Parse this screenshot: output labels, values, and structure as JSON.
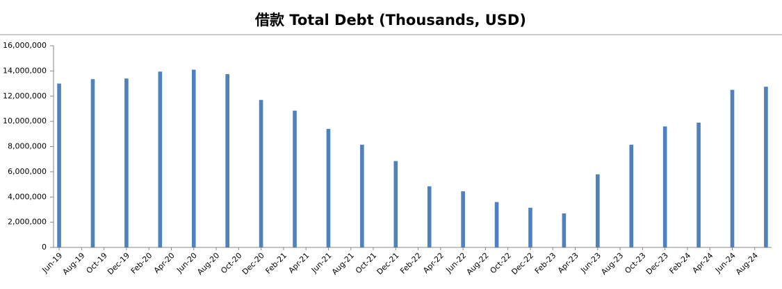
{
  "chart_data": {
    "type": "bar",
    "title": "借款 Total Debt (Thousands, USD)",
    "categories": [
      "Jun-19",
      null,
      "Aug-19",
      null,
      "Oct-19",
      null,
      "Dec-19",
      null,
      "Feb-20",
      null,
      "Apr-20",
      null,
      "Jun-20",
      null,
      "Aug-20",
      null,
      "Oct-20",
      null,
      "Dec-20",
      null,
      "Feb-21",
      null,
      "Apr-21",
      null,
      "Jun-21",
      null,
      "Aug-21",
      null,
      "Oct-21",
      null,
      "Dec-21",
      null,
      "Feb-22",
      null,
      "Apr-22",
      null,
      "Jun-22",
      null,
      "Aug-22",
      null,
      "Oct-22",
      null,
      "Dec-22",
      null,
      "Feb-23",
      null,
      "Apr-23",
      null,
      "Jun-23",
      null,
      "Aug-23",
      null,
      "Oct-23",
      null,
      "Dec-23",
      null,
      "Feb-24",
      null,
      "Apr-24",
      null,
      "Jun-24",
      null,
      "Aug-24",
      null
    ],
    "values": [
      13000000,
      null,
      null,
      13350000,
      null,
      null,
      13400000,
      null,
      null,
      13950000,
      null,
      null,
      14100000,
      null,
      null,
      13750000,
      null,
      null,
      11700000,
      null,
      null,
      10850000,
      null,
      null,
      9400000,
      null,
      null,
      8150000,
      null,
      null,
      6850000,
      null,
      null,
      4850000,
      null,
      null,
      4450000,
      null,
      null,
      3600000,
      null,
      null,
      3150000,
      null,
      null,
      2700000,
      null,
      null,
      5800000,
      null,
      null,
      8150000,
      null,
      null,
      9600000,
      null,
      null,
      9900000,
      null,
      null,
      12500000,
      null,
      null,
      12750000
    ],
    "color": "#4f81bd",
    "ylim": [
      0,
      16000000
    ],
    "yticks": [
      0,
      {
        "value": 2000000,
        "label": "2,000,000"
      },
      {
        "value": 4000000,
        "label": "4,000,000"
      },
      {
        "value": 6000000,
        "label": "6,000,000"
      },
      {
        "value": 8000000,
        "label": "8,000,000"
      },
      {
        "value": 10000000,
        "label": "10,000,000"
      },
      {
        "value": 12000000,
        "label": "12,000,000"
      },
      {
        "value": 14000000,
        "label": "14,000,000"
      },
      {
        "value": 16000000,
        "label": "16,000,000"
      }
    ],
    "grid": false
  }
}
